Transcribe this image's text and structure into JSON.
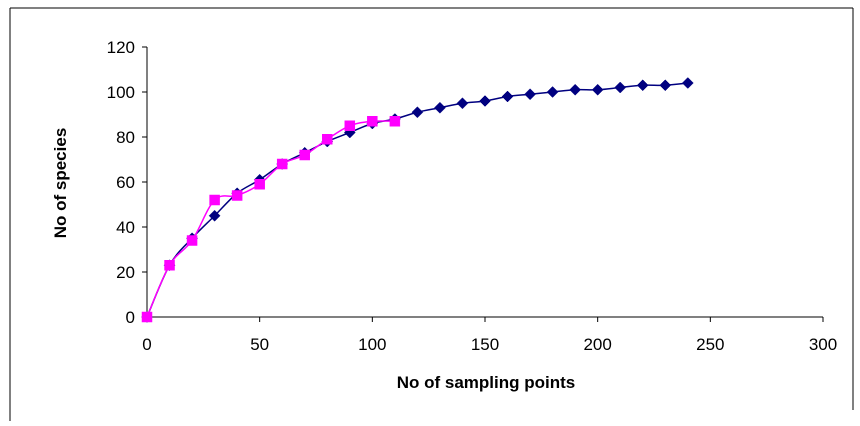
{
  "chart_data": {
    "type": "line",
    "title": "",
    "xlabel": "No of sampling points",
    "ylabel": "No of species",
    "xlim": [
      0,
      300
    ],
    "ylim": [
      0,
      120
    ],
    "xticks": [
      0,
      50,
      100,
      150,
      200,
      250,
      300
    ],
    "yticks": [
      0,
      20,
      40,
      60,
      80,
      100,
      120
    ],
    "grid": false,
    "legend": "none",
    "series": [
      {
        "marker": "diamond",
        "color": "#000080",
        "x": [
          0,
          10,
          20,
          30,
          40,
          50,
          60,
          70,
          80,
          90,
          100,
          110,
          120,
          130,
          140,
          150,
          160,
          170,
          180,
          190,
          200,
          210,
          220,
          230,
          240
        ],
        "y": [
          0,
          23,
          35,
          45,
          55,
          61,
          68,
          73,
          78,
          82,
          86,
          88,
          91,
          93,
          95,
          96,
          98,
          99,
          100,
          101,
          101,
          102,
          103,
          103,
          104
        ]
      },
      {
        "marker": "square",
        "color": "#ff00ff",
        "x": [
          0,
          10,
          20,
          30,
          40,
          50,
          60,
          70,
          80,
          90,
          100,
          110
        ],
        "y": [
          0,
          23,
          34,
          52,
          54,
          59,
          68,
          72,
          79,
          85,
          87,
          87
        ]
      }
    ]
  }
}
